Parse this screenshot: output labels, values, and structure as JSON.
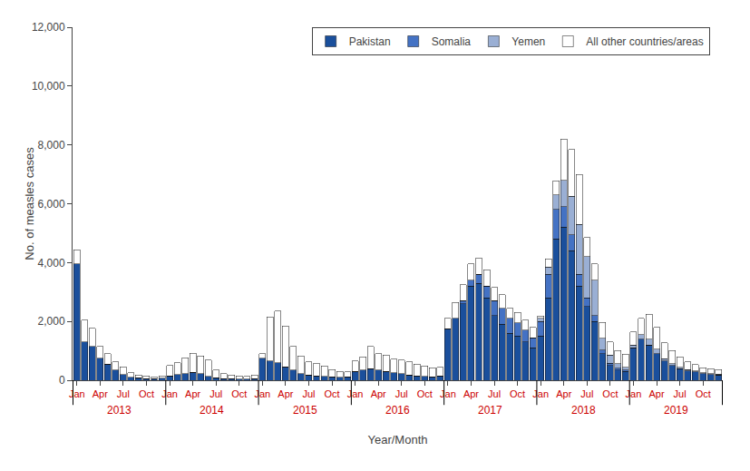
{
  "chart_data": {
    "type": "bar",
    "stacked": true,
    "grid": false,
    "legend": "upper right",
    "xlabel": "Year/Month",
    "ylabel": "No. of measles cases",
    "ylim": [
      0,
      12000
    ],
    "yticks": [
      0,
      {
        "value": 2000,
        "label": "2,000"
      },
      {
        "value": 4000,
        "label": "4,000"
      },
      {
        "value": 6000,
        "label": "6,000"
      },
      {
        "value": 8000,
        "label": "8,000"
      },
      {
        "value": 10000,
        "label": "10,000"
      },
      {
        "value": 12000,
        "label": "12,000"
      }
    ],
    "annotations": [
      "2013",
      "2014",
      "2015",
      "2016",
      "2017",
      "2018",
      "2019"
    ],
    "categories": [
      "Jan",
      null,
      null,
      "Apr",
      null,
      null,
      "Jul",
      null,
      null,
      "Oct",
      null,
      null,
      "Jan",
      null,
      null,
      "Apr",
      null,
      null,
      "Jul",
      null,
      null,
      "Oct",
      null,
      null,
      "Jan",
      null,
      null,
      "Apr",
      null,
      null,
      "Jul",
      null,
      null,
      "Oct",
      null,
      null,
      "Jan",
      null,
      null,
      "Apr",
      null,
      null,
      "Jul",
      null,
      null,
      "Oct",
      null,
      null,
      "Jan",
      null,
      null,
      "Apr",
      null,
      null,
      "Jul",
      null,
      null,
      "Oct",
      null,
      null,
      "Jan",
      null,
      null,
      "Apr",
      null,
      null,
      "Jul",
      null,
      null,
      "Oct",
      null,
      null,
      "Jan",
      null,
      null,
      "Apr",
      null,
      null,
      "Jul",
      null,
      null,
      "Oct",
      null,
      null
    ],
    "series": [
      {
        "name": "Pakistan",
        "color": "#1A4F9C",
        "values": [
          3950,
          1300,
          1150,
          750,
          550,
          350,
          200,
          100,
          80,
          60,
          50,
          70,
          150,
          200,
          220,
          270,
          220,
          130,
          90,
          60,
          50,
          40,
          35,
          50,
          750,
          650,
          600,
          450,
          350,
          220,
          180,
          150,
          130,
          110,
          100,
          120,
          300,
          350,
          400,
          350,
          300,
          260,
          230,
          180,
          150,
          130,
          120,
          140,
          1750,
          2100,
          2600,
          3200,
          3300,
          2800,
          2200,
          1900,
          1600,
          1500,
          1300,
          1100,
          1500,
          2800,
          4800,
          5200,
          4400,
          3200,
          2500,
          2000,
          900,
          500,
          350,
          300,
          1100,
          1400,
          1200,
          900,
          650,
          500,
          400,
          320,
          280,
          220,
          200,
          180
        ]
      },
      {
        "name": "Somalia",
        "color": "#4472C4",
        "values": [
          0,
          0,
          0,
          0,
          0,
          0,
          0,
          0,
          0,
          0,
          0,
          0,
          0,
          0,
          0,
          0,
          0,
          0,
          0,
          0,
          0,
          0,
          0,
          0,
          0,
          0,
          0,
          0,
          0,
          0,
          0,
          0,
          0,
          0,
          0,
          0,
          0,
          0,
          0,
          0,
          0,
          0,
          0,
          0,
          0,
          0,
          0,
          0,
          0,
          0,
          100,
          200,
          300,
          400,
          500,
          550,
          500,
          450,
          400,
          350,
          500,
          800,
          1000,
          700,
          550,
          400,
          300,
          200,
          120,
          80,
          60,
          40,
          0,
          0,
          0,
          0,
          0,
          0,
          0,
          0,
          0,
          0,
          0,
          0
        ]
      },
      {
        "name": "Yemen",
        "color": "#9AAFD4",
        "values": [
          0,
          0,
          0,
          0,
          0,
          0,
          0,
          0,
          0,
          0,
          0,
          0,
          0,
          0,
          0,
          0,
          0,
          0,
          0,
          0,
          0,
          0,
          0,
          0,
          0,
          0,
          0,
          0,
          0,
          0,
          0,
          0,
          0,
          0,
          0,
          0,
          0,
          0,
          0,
          0,
          0,
          0,
          0,
          0,
          0,
          0,
          0,
          0,
          0,
          0,
          0,
          0,
          0,
          0,
          0,
          0,
          0,
          0,
          0,
          0,
          100,
          250,
          500,
          900,
          1300,
          1700,
          1400,
          1200,
          400,
          280,
          150,
          100,
          100,
          150,
          200,
          150,
          80,
          60,
          40,
          40,
          30,
          30,
          30,
          30
        ]
      },
      {
        "name": "All other countries/areas",
        "color": "#FFFFFF",
        "values": [
          480,
          750,
          620,
          400,
          350,
          280,
          250,
          150,
          100,
          80,
          70,
          80,
          350,
          400,
          550,
          650,
          600,
          550,
          260,
          170,
          120,
          100,
          90,
          120,
          160,
          1500,
          1750,
          1400,
          800,
          600,
          450,
          430,
          350,
          250,
          200,
          160,
          350,
          450,
          750,
          550,
          550,
          460,
          450,
          450,
          400,
          350,
          300,
          300,
          350,
          550,
          550,
          550,
          550,
          550,
          450,
          450,
          350,
          350,
          350,
          350,
          80,
          280,
          480,
          1400,
          1600,
          1700,
          650,
          550,
          550,
          450,
          450,
          450,
          450,
          550,
          850,
          750,
          550,
          450,
          350,
          260,
          220,
          170,
          160,
          160
        ]
      }
    ]
  }
}
